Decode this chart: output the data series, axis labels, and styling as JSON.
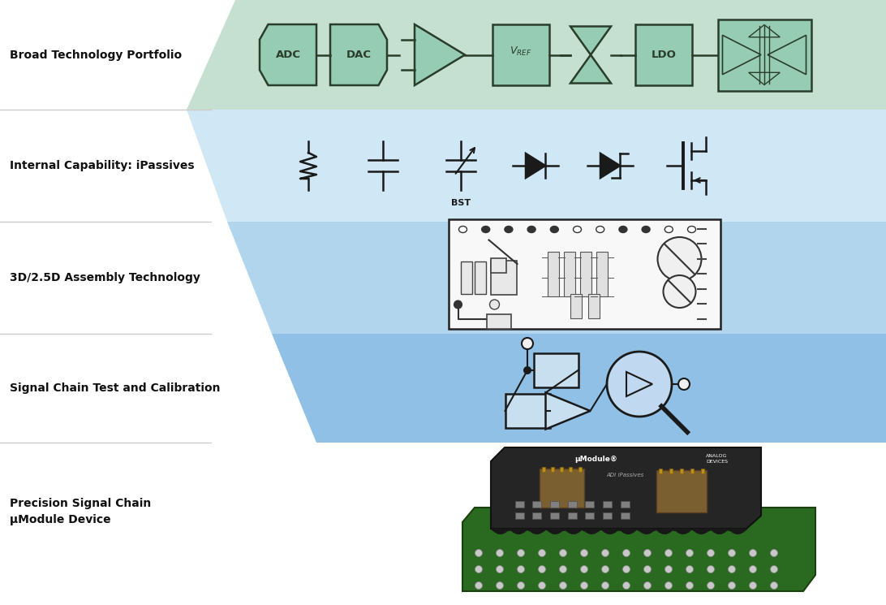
{
  "bg_color": "#ffffff",
  "green_fill": "#c5e0d0",
  "blue1_fill": "#d0e8f5",
  "blue2_fill": "#b0d5ed",
  "blue3_fill": "#90c0e5",
  "comp_fill": "#96ccb4",
  "comp_edge": "#2a3d2a",
  "dark_line": "#1a1a1a",
  "labels": {
    "label1": "Broad Technology Portfolio",
    "label2": "Internal Capability: iPassives",
    "label3": "3D/2.5D Assembly Technology",
    "label4": "Signal Chain Test and Calibration",
    "label5": "Precision Signal Chain\nμModule Device"
  }
}
